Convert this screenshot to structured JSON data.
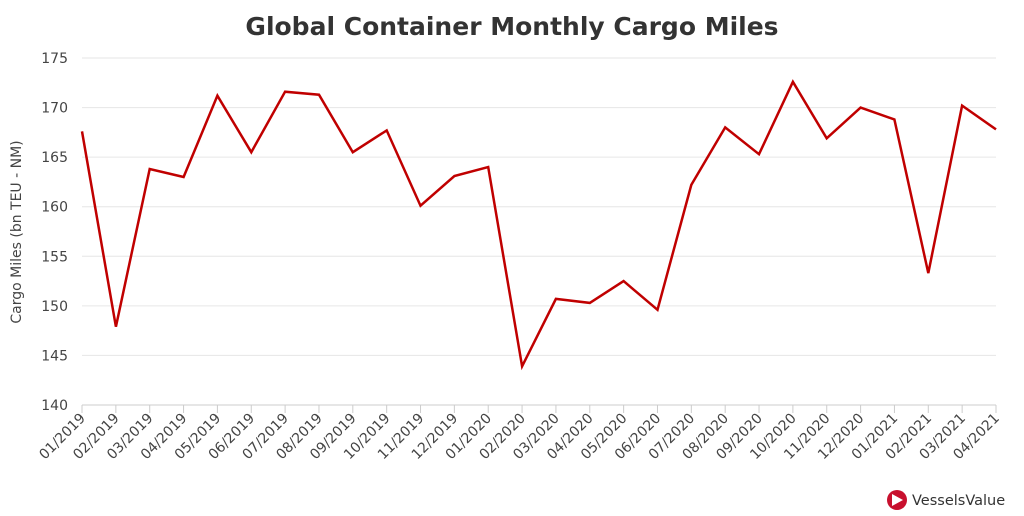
{
  "chart_data": {
    "type": "line",
    "title": "Global Container Monthly Cargo Miles",
    "xlabel": "",
    "ylabel": "Cargo Miles (bn TEU - NM)",
    "ylim": [
      140,
      175
    ],
    "yticks": [
      140,
      145,
      150,
      155,
      160,
      165,
      170,
      175
    ],
    "grid": true,
    "legend": "none",
    "categories": [
      "01/2019",
      "02/2019",
      "03/2019",
      "04/2019",
      "05/2019",
      "06/2019",
      "07/2019",
      "08/2019",
      "09/2019",
      "10/2019",
      "11/2019",
      "12/2019",
      "01/2020",
      "02/2020",
      "03/2020",
      "04/2020",
      "05/2020",
      "06/2020",
      "07/2020",
      "08/2020",
      "09/2020",
      "10/2020",
      "11/2020",
      "12/2020",
      "01/2021",
      "02/2021",
      "03/2021",
      "04/2021"
    ],
    "series": [
      {
        "name": "Cargo Miles",
        "color": "#c00000",
        "values": [
          167.6,
          147.9,
          163.8,
          163.0,
          171.2,
          165.5,
          171.6,
          171.3,
          165.5,
          167.7,
          160.1,
          163.1,
          164.0,
          143.9,
          150.7,
          150.3,
          152.5,
          149.6,
          162.2,
          168.0,
          165.3,
          172.6,
          166.9,
          170.0,
          168.8,
          153.3,
          170.2,
          167.8
        ]
      }
    ]
  },
  "brand": {
    "name": "VesselsValue",
    "color": "#c8102e"
  }
}
